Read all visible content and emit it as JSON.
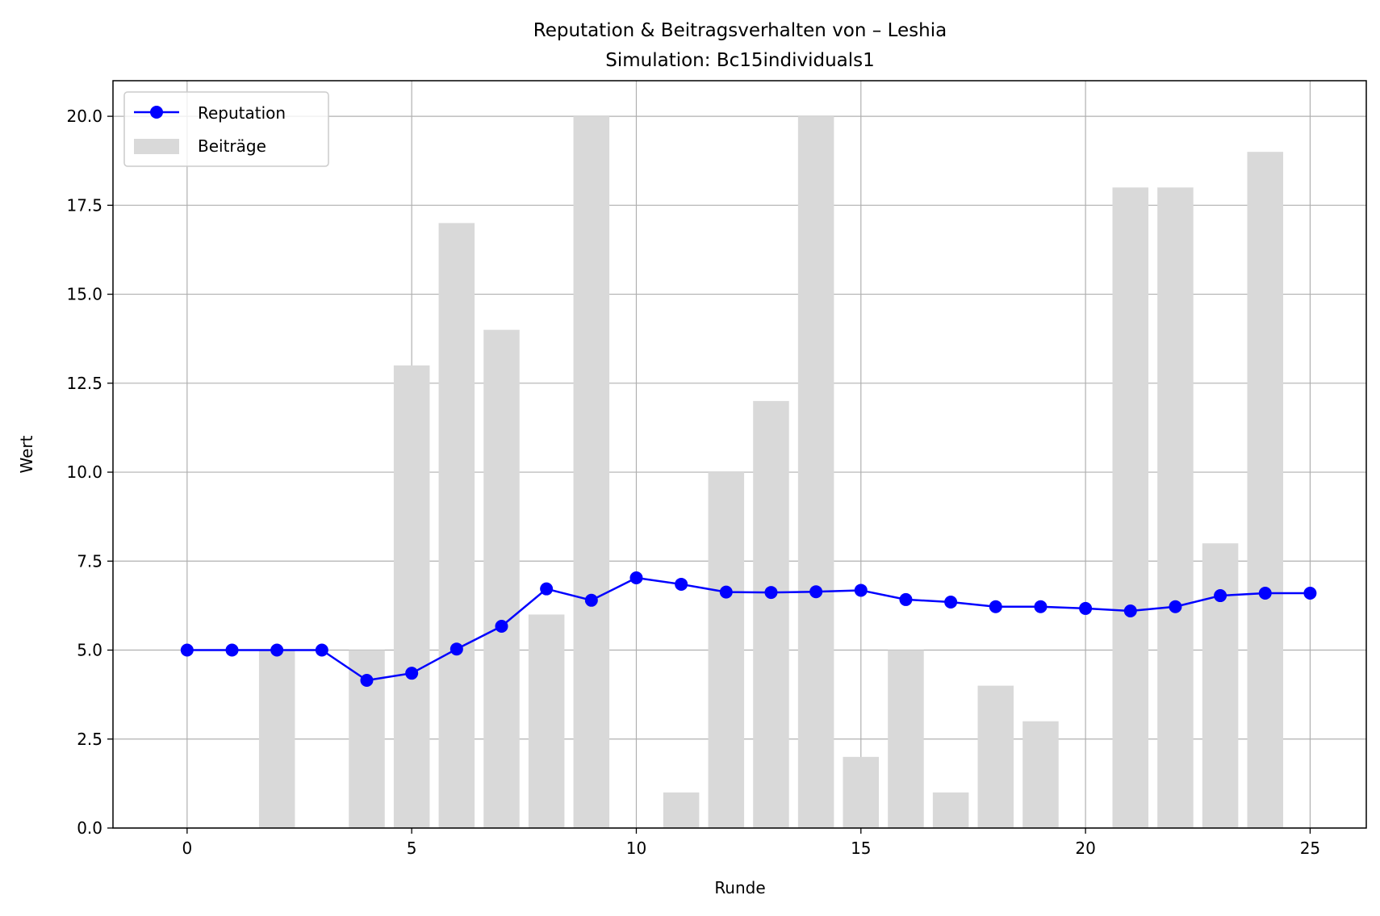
{
  "chart_data": {
    "type": "bar",
    "title": "Reputation & Beitragsverhalten von – Leshia",
    "subtitle": "Simulation: Bc15individuals1",
    "xlabel": "Runde",
    "ylabel": "Wert",
    "xlim": [
      -1.65,
      26.25
    ],
    "ylim": [
      0,
      21
    ],
    "xticks": [
      0,
      5,
      10,
      15,
      20,
      25
    ],
    "yticks": [
      0.0,
      2.5,
      5.0,
      7.5,
      10.0,
      12.5,
      15.0,
      17.5,
      20.0
    ],
    "ytick_labels": [
      "0.0",
      "2.5",
      "5.0",
      "7.5",
      "10.0",
      "12.5",
      "15.0",
      "17.5",
      "20.0"
    ],
    "grid": true,
    "legend_position": "top-left",
    "x": [
      0,
      1,
      2,
      3,
      4,
      5,
      6,
      7,
      8,
      9,
      10,
      11,
      12,
      13,
      14,
      15,
      16,
      17,
      18,
      19,
      20,
      21,
      22,
      23,
      24,
      25
    ],
    "series": [
      {
        "name": "Reputation",
        "kind": "line",
        "marker": "circle",
        "color": "#0000ff",
        "values": [
          5.0,
          5.0,
          5.0,
          5.0,
          4.15,
          4.35,
          5.03,
          5.67,
          6.72,
          6.4,
          7.03,
          6.85,
          6.63,
          6.62,
          6.64,
          6.68,
          6.42,
          6.35,
          6.22,
          6.22,
          6.17,
          6.1,
          6.22,
          6.53,
          6.6,
          6.6
        ]
      },
      {
        "name": "Beiträge",
        "kind": "bar",
        "color": "#d9d9d9",
        "values": [
          0,
          0,
          5,
          0,
          5,
          13,
          17,
          14,
          6,
          20,
          0,
          1,
          10,
          12,
          20,
          2,
          5,
          1,
          4,
          3,
          0,
          18,
          18,
          8,
          19,
          0
        ]
      }
    ]
  }
}
